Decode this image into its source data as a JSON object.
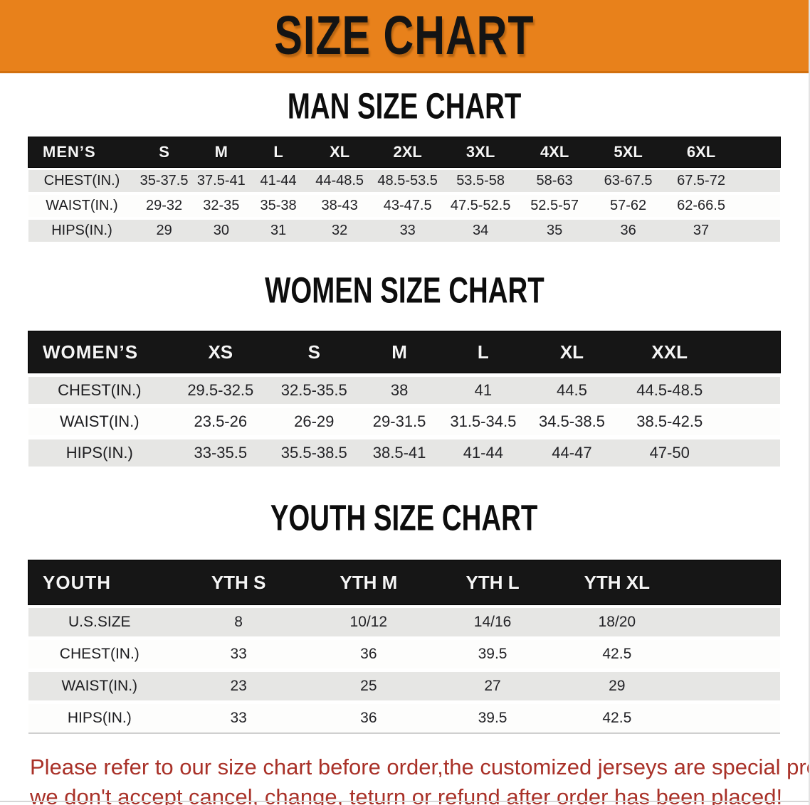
{
  "colors": {
    "banner_orange": "#E8811B",
    "banner_text": "#141414",
    "header_bar": "#161616",
    "row_gray": "#E6E6E4",
    "row_white": "#FDFDFC",
    "footer_red": "#A93128"
  },
  "banner": {
    "title": "SIZE CHART"
  },
  "men": {
    "section_title": "MAN SIZE CHART",
    "corner": "MEN’S",
    "sizes": [
      "S",
      "M",
      "L",
      "XL",
      "2XL",
      "3XL",
      "4XL",
      "5XL",
      "6XL"
    ],
    "chest": {
      "label": "CHEST(IN.)",
      "values": [
        "35-37.5",
        "37.5-41",
        "41-44",
        "44-48.5",
        "48.5-53.5",
        "53.5-58",
        "58-63",
        "63-67.5",
        "67.5-72"
      ]
    },
    "waist": {
      "label": "WAIST(IN.)",
      "values": [
        "29-32",
        "32-35",
        "35-38",
        "38-43",
        "43-47.5",
        "47.5-52.5",
        "52.5-57",
        "57-62",
        "62-66.5"
      ]
    },
    "hips": {
      "label": "HIPS(IN.)",
      "values": [
        "29",
        "30",
        "31",
        "32",
        "33",
        "34",
        "35",
        "36",
        "37"
      ]
    }
  },
  "women": {
    "section_title": "WOMEN SIZE CHART",
    "corner": "WOMEN’S",
    "sizes": [
      "XS",
      "S",
      "M",
      "L",
      "XL",
      "XXL"
    ],
    "chest": {
      "label": "CHEST(IN.)",
      "values": [
        "29.5-32.5",
        "32.5-35.5",
        "38",
        "41",
        "44.5",
        "44.5-48.5"
      ]
    },
    "waist": {
      "label": "WAIST(IN.)",
      "values": [
        "23.5-26",
        "26-29",
        "29-31.5",
        "31.5-34.5",
        "34.5-38.5",
        "38.5-42.5"
      ]
    },
    "hips": {
      "label": "HIPS(IN.)",
      "values": [
        "33-35.5",
        "35.5-38.5",
        "38.5-41",
        "41-44",
        "44-47",
        "47-50"
      ]
    }
  },
  "youth": {
    "section_title": "YOUTH SIZE CHART",
    "corner": "YOUTH",
    "sizes": [
      "YTH S",
      "YTH M",
      "YTH L",
      "YTH XL"
    ],
    "us_size": {
      "label": "U.S.SIZE",
      "values": [
        "8",
        "10/12",
        "14/16",
        "18/20"
      ]
    },
    "chest": {
      "label": "CHEST(IN.)",
      "values": [
        "33",
        "36",
        "39.5",
        "42.5"
      ]
    },
    "waist": {
      "label": "WAIST(IN.)",
      "values": [
        "23",
        "25",
        "27",
        "29"
      ]
    },
    "hips": {
      "label": "HIPS(IN.)",
      "values": [
        "33",
        "36",
        "39.5",
        "42.5"
      ]
    }
  },
  "footer": {
    "line1": "Please refer to our size chart before order,the customized jerseys are special products,",
    "line2": "we don't accept cancel, change, teturn or refund after order has been placed!"
  }
}
